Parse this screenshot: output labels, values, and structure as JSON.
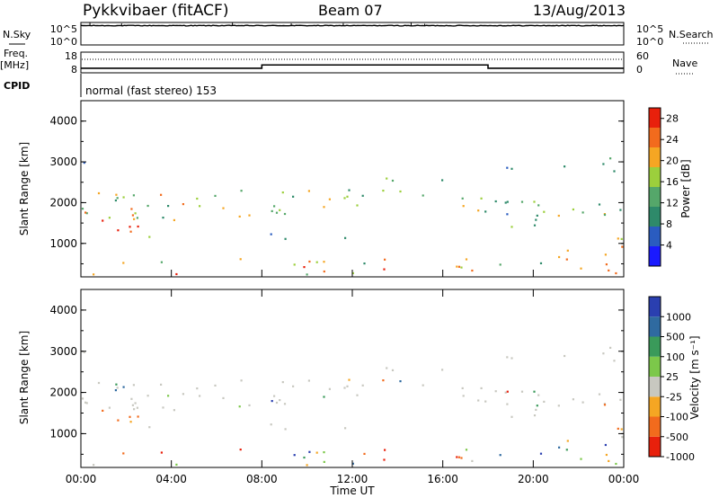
{
  "header": {
    "station": "Pykkvibaer (fitACF)",
    "beam": "Beam 07",
    "date": "13/Aug/2013"
  },
  "left_labels": {
    "nsky": "N.Sky",
    "nsky_ticks": [
      "10^5",
      "10^0"
    ],
    "freq_line1": "Freq.",
    "freq_line2": "[MHz]",
    "freq_ticks": [
      "18",
      "8"
    ],
    "cpid": "CPID"
  },
  "right_labels": {
    "nsearch": "N.Search",
    "nsearch_ticks": [
      "10^5",
      "10^0"
    ],
    "nave": "Nave",
    "nave_ticks": [
      "60",
      "0"
    ]
  },
  "cpid_text": "normal (fast stereo) 153",
  "chart_data": [
    {
      "type": "line",
      "title": "N.Sky / N.Search",
      "ylim_log10": [
        0,
        5
      ],
      "x": [
        "00:00",
        "04:00",
        "08:00",
        "12:00",
        "16:00",
        "20:00",
        "00:00"
      ],
      "nsky_level_log10": 4.3
    },
    {
      "type": "line",
      "title": "Freq. / Nave",
      "freq_ylim_mhz": [
        8,
        18
      ],
      "nave_ylim": [
        0,
        60
      ],
      "freq_segments_mhz": [
        {
          "start": "00:00",
          "end": "08:00",
          "value": 10.2
        },
        {
          "start": "08:00",
          "end": "18:00",
          "value": 11.8
        },
        {
          "start": "18:00",
          "end": "24:00",
          "value": 10.2
        }
      ],
      "nave_level": 55
    },
    {
      "type": "heatmap",
      "quantity": "Power",
      "ylabel": "Slant Range [km]",
      "ylim_km": [
        180,
        4500
      ],
      "yticks": [
        "1000",
        "2000",
        "3000",
        "4000"
      ],
      "colorbar_label": "Power [dB]",
      "colorbar_ticks": [
        "4",
        "8",
        "12",
        "16",
        "20",
        "24",
        "28"
      ],
      "colorbar_range": [
        0,
        30
      ],
      "colorbar_colors": [
        "#1a1aff",
        "#2a5cc0",
        "#2e8a6a",
        "#55a76a",
        "#9ccf3c",
        "#f5a623",
        "#f26b1d",
        "#e8200c"
      ]
    },
    {
      "type": "heatmap",
      "quantity": "Velocity",
      "ylabel": "Slant Range [km]",
      "xlabel": "Time UT",
      "ylim_km": [
        180,
        4500
      ],
      "yticks": [
        "1000",
        "2000",
        "3000",
        "4000"
      ],
      "xticks": [
        "00:00",
        "04:00",
        "08:00",
        "12:00",
        "16:00",
        "20:00",
        "00:00"
      ],
      "colorbar_label": "Velocity [m s⁻¹]",
      "colorbar_ticks": [
        "1000",
        "500",
        "100",
        "25",
        "-25",
        "-100",
        "-500",
        "-1000"
      ],
      "colorbar_colors": [
        "#2a3fb0",
        "#2f6aa0",
        "#3a9a5a",
        "#7cc84a",
        "#c8c8c0",
        "#f5a623",
        "#f26b1d",
        "#e8200c"
      ]
    }
  ]
}
